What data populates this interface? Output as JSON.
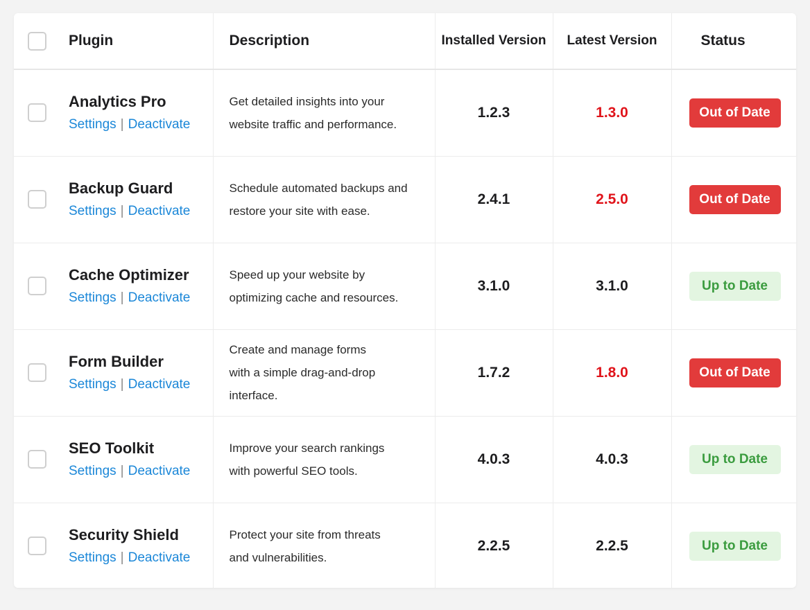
{
  "colors": {
    "link": "#1b87d8",
    "outdated_version": "#e0141b",
    "current_version": "#1d1d1f",
    "badge_out_bg": "#e23b3b",
    "badge_out_text": "#ffffff",
    "badge_ok_bg": "#e3f5e1",
    "badge_ok_text": "#3b9c3f"
  },
  "header": {
    "plugin": "Plugin",
    "description": "Description",
    "installed": "Installed Version",
    "latest": "Latest Version",
    "status": "Status"
  },
  "actions": {
    "settings": "Settings",
    "separator": "|",
    "deactivate": "Deactivate"
  },
  "plugins": [
    {
      "name": "Analytics Pro",
      "description_lines": [
        "Get detailed insights into your",
        "website traffic and performance."
      ],
      "installed": "1.2.3",
      "latest": "1.3.0",
      "status": "Out of Date",
      "up_to_date": false
    },
    {
      "name": "Backup Guard",
      "description_lines": [
        "Schedule automated backups and",
        "restore your site with ease."
      ],
      "installed": "2.4.1",
      "latest": "2.5.0",
      "status": "Out of Date",
      "up_to_date": false
    },
    {
      "name": "Cache Optimizer",
      "description_lines": [
        "Speed up your website by",
        "optimizing cache and resources."
      ],
      "installed": "3.1.0",
      "latest": "3.1.0",
      "status": "Up to Date",
      "up_to_date": true
    },
    {
      "name": "Form Builder",
      "description_lines": [
        "Create and manage forms",
        "with a simple drag-and-drop",
        "interface."
      ],
      "installed": "1.7.2",
      "latest": "1.8.0",
      "status": "Out of Date",
      "up_to_date": false
    },
    {
      "name": "SEO Toolkit",
      "description_lines": [
        "Improve your search rankings",
        "with powerful SEO tools."
      ],
      "installed": "4.0.3",
      "latest": "4.0.3",
      "status": "Up to Date",
      "up_to_date": true
    },
    {
      "name": "Security Shield",
      "description_lines": [
        "Protect your site from threats",
        "and vulnerabilities."
      ],
      "installed": "2.2.5",
      "latest": "2.2.5",
      "status": "Up to Date",
      "up_to_date": true
    }
  ]
}
